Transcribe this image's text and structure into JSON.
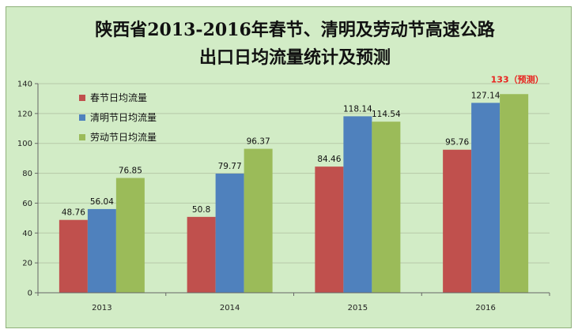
{
  "chart_data": {
    "type": "bar",
    "title_line1": "陕西省2013-2016年春节、清明及劳动节高速公路",
    "title_line2": "出口日均流量统计及预测",
    "categories": [
      "2013",
      "2014",
      "2015",
      "2016"
    ],
    "series": [
      {
        "name": "春节日均流量",
        "color": "#c0504d",
        "values": [
          48.76,
          50.8,
          84.46,
          95.76
        ],
        "labels": [
          "48.76",
          "50.8",
          "84.46",
          "95.76"
        ]
      },
      {
        "name": "清明节日均流量",
        "color": "#4f81bd",
        "values": [
          56.04,
          79.77,
          118.14,
          127.14
        ],
        "labels": [
          "56.04",
          "79.77",
          "118.14",
          "127.14"
        ]
      },
      {
        "name": "劳动节日均流量",
        "color": "#9bbb59",
        "values": [
          76.85,
          96.37,
          114.54,
          133
        ],
        "labels": [
          "76.85",
          "96.37",
          "114.54",
          ""
        ]
      }
    ],
    "annotation": "133（预测）",
    "yticks": [
      0,
      20,
      40,
      60,
      80,
      100,
      120,
      140
    ],
    "ylim": [
      0,
      140
    ],
    "grid": true,
    "legend_position": "top-left"
  }
}
